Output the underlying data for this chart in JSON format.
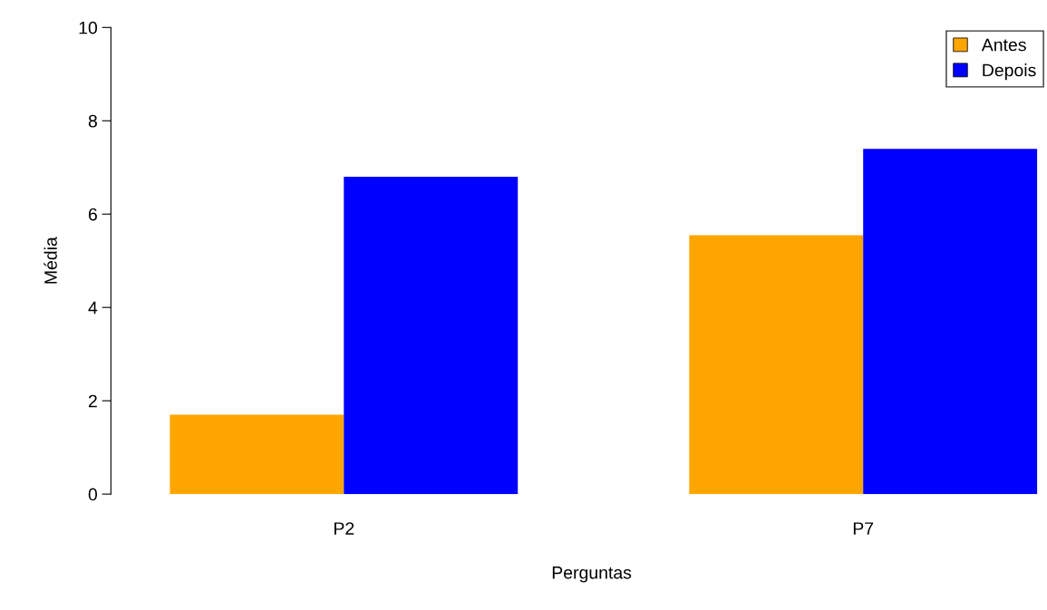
{
  "chart_data": {
    "type": "bar",
    "xlabel": "Perguntas",
    "ylabel": "Média",
    "categories": [
      "P2",
      "P7"
    ],
    "series": [
      {
        "name": "Antes",
        "color": "#ffa500",
        "values": [
          1.7,
          5.55
        ]
      },
      {
        "name": "Depois",
        "color": "#0000ff",
        "values": [
          6.8,
          7.4
        ]
      }
    ],
    "ylim": [
      0,
      10
    ],
    "yticks": [
      0,
      2,
      4,
      6,
      8,
      10
    ],
    "grid": false,
    "legend": "top right"
  }
}
